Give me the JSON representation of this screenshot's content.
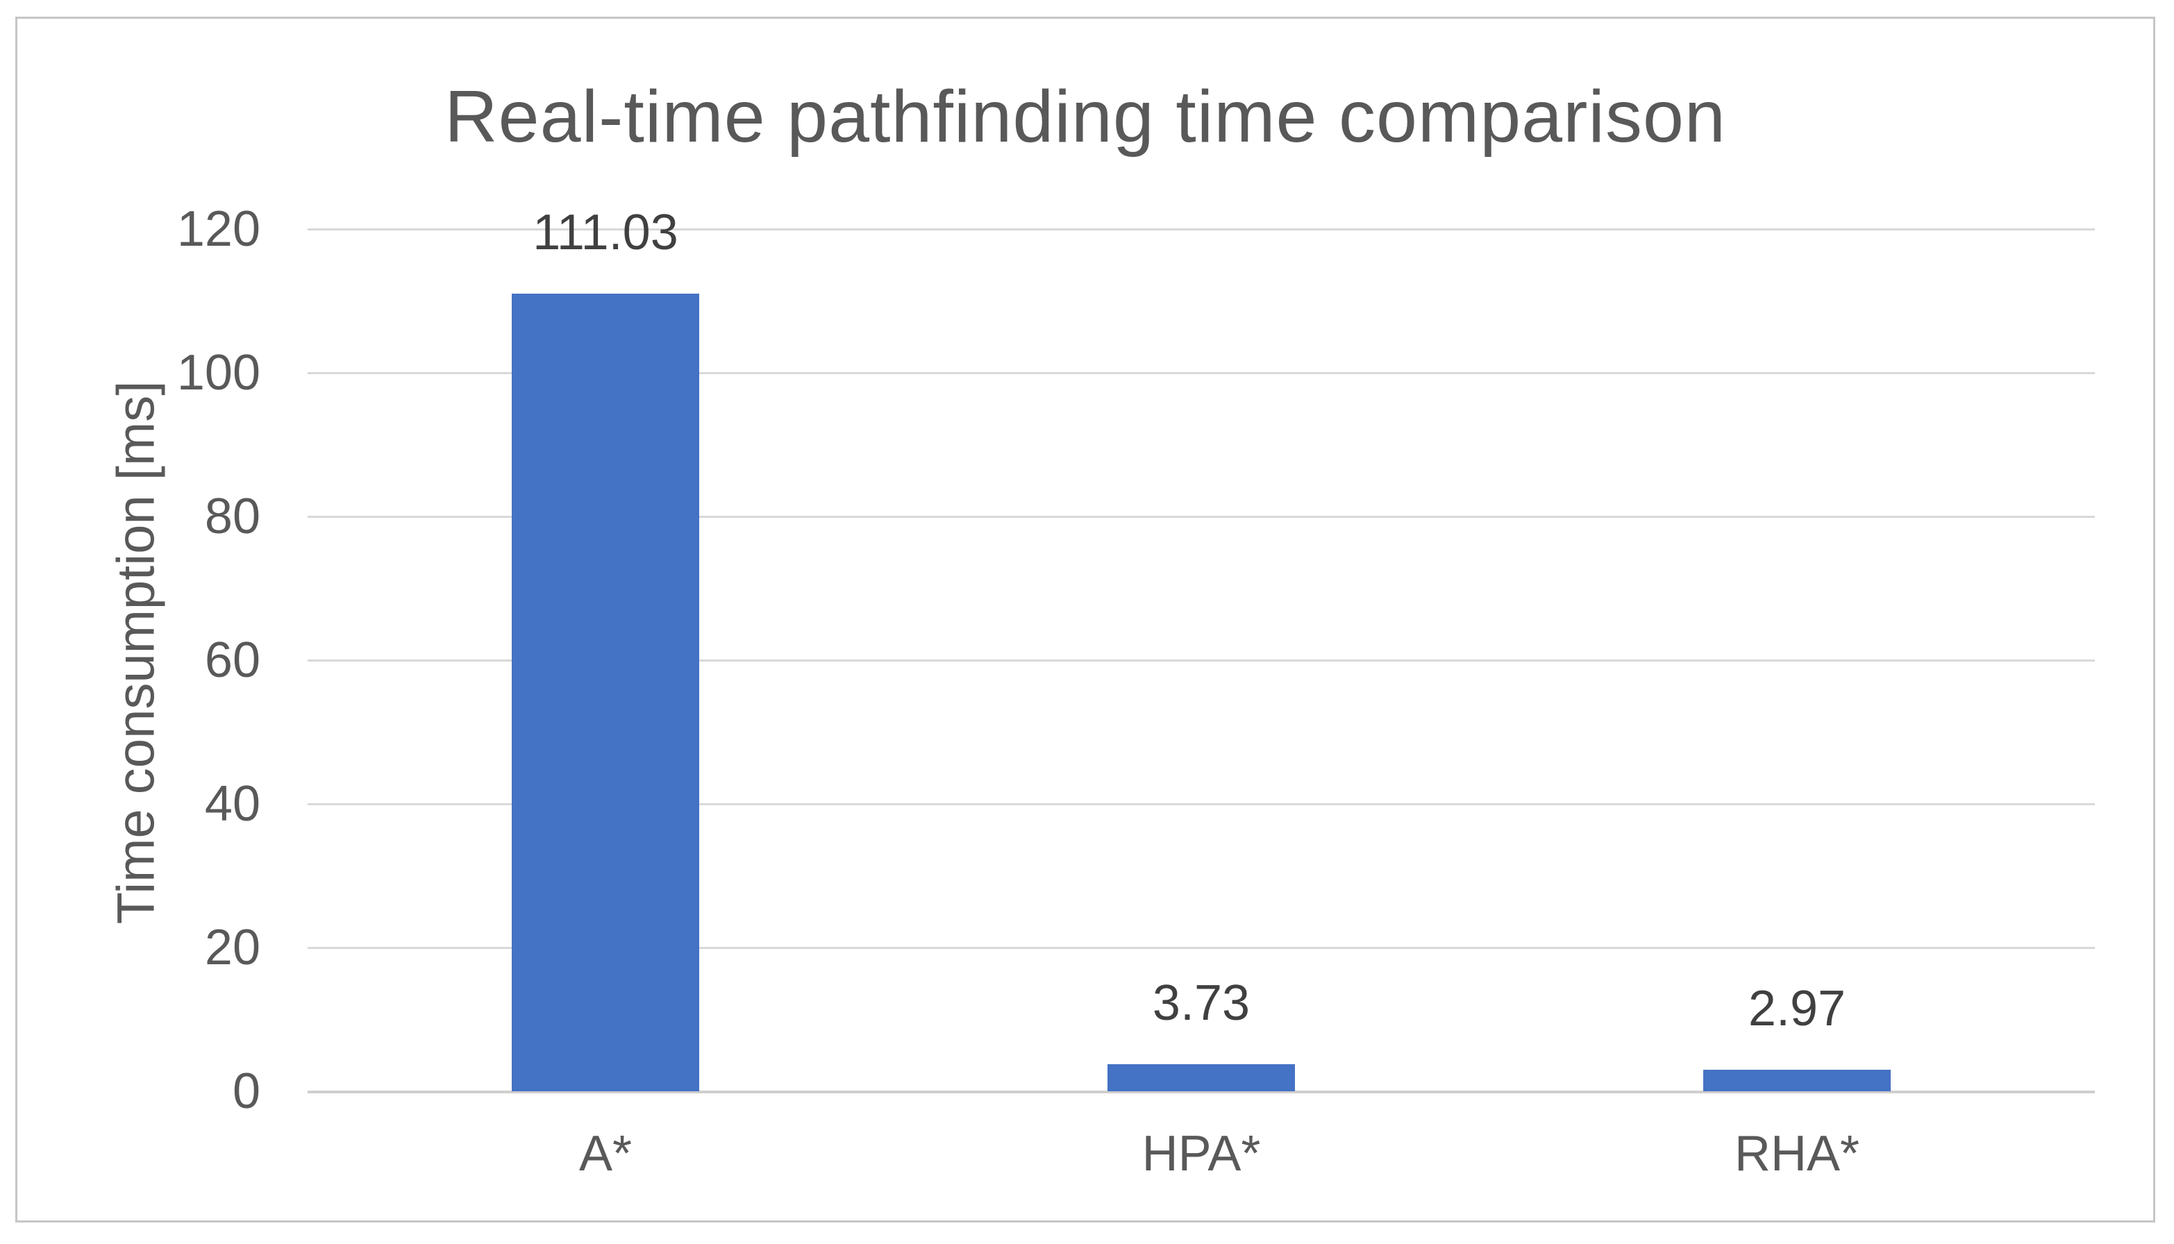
{
  "chart_data": {
    "type": "bar",
    "title": "Real-time pathfinding time comparison",
    "categories": [
      "A*",
      "HPA*",
      "RHA*"
    ],
    "values": [
      111.03,
      3.73,
      2.97
    ],
    "value_labels": [
      "111.03",
      "3.73",
      "2.97"
    ],
    "xlabel": "",
    "ylabel": "Time consumption [ms]",
    "ylim": [
      0,
      120
    ],
    "yticks": [
      0,
      20,
      40,
      60,
      80,
      100,
      120
    ],
    "ytick_labels": [
      "0",
      "20",
      "40",
      "60",
      "80",
      "100",
      "120"
    ],
    "grid": "horizontal-gridlines-on",
    "legend": "none",
    "bar_color": "#4472c4",
    "text_color": "#595959",
    "gridline_color": "#d9d9d9",
    "frame_border_color": "#c6c6c6",
    "background_color": "#ffffff"
  }
}
